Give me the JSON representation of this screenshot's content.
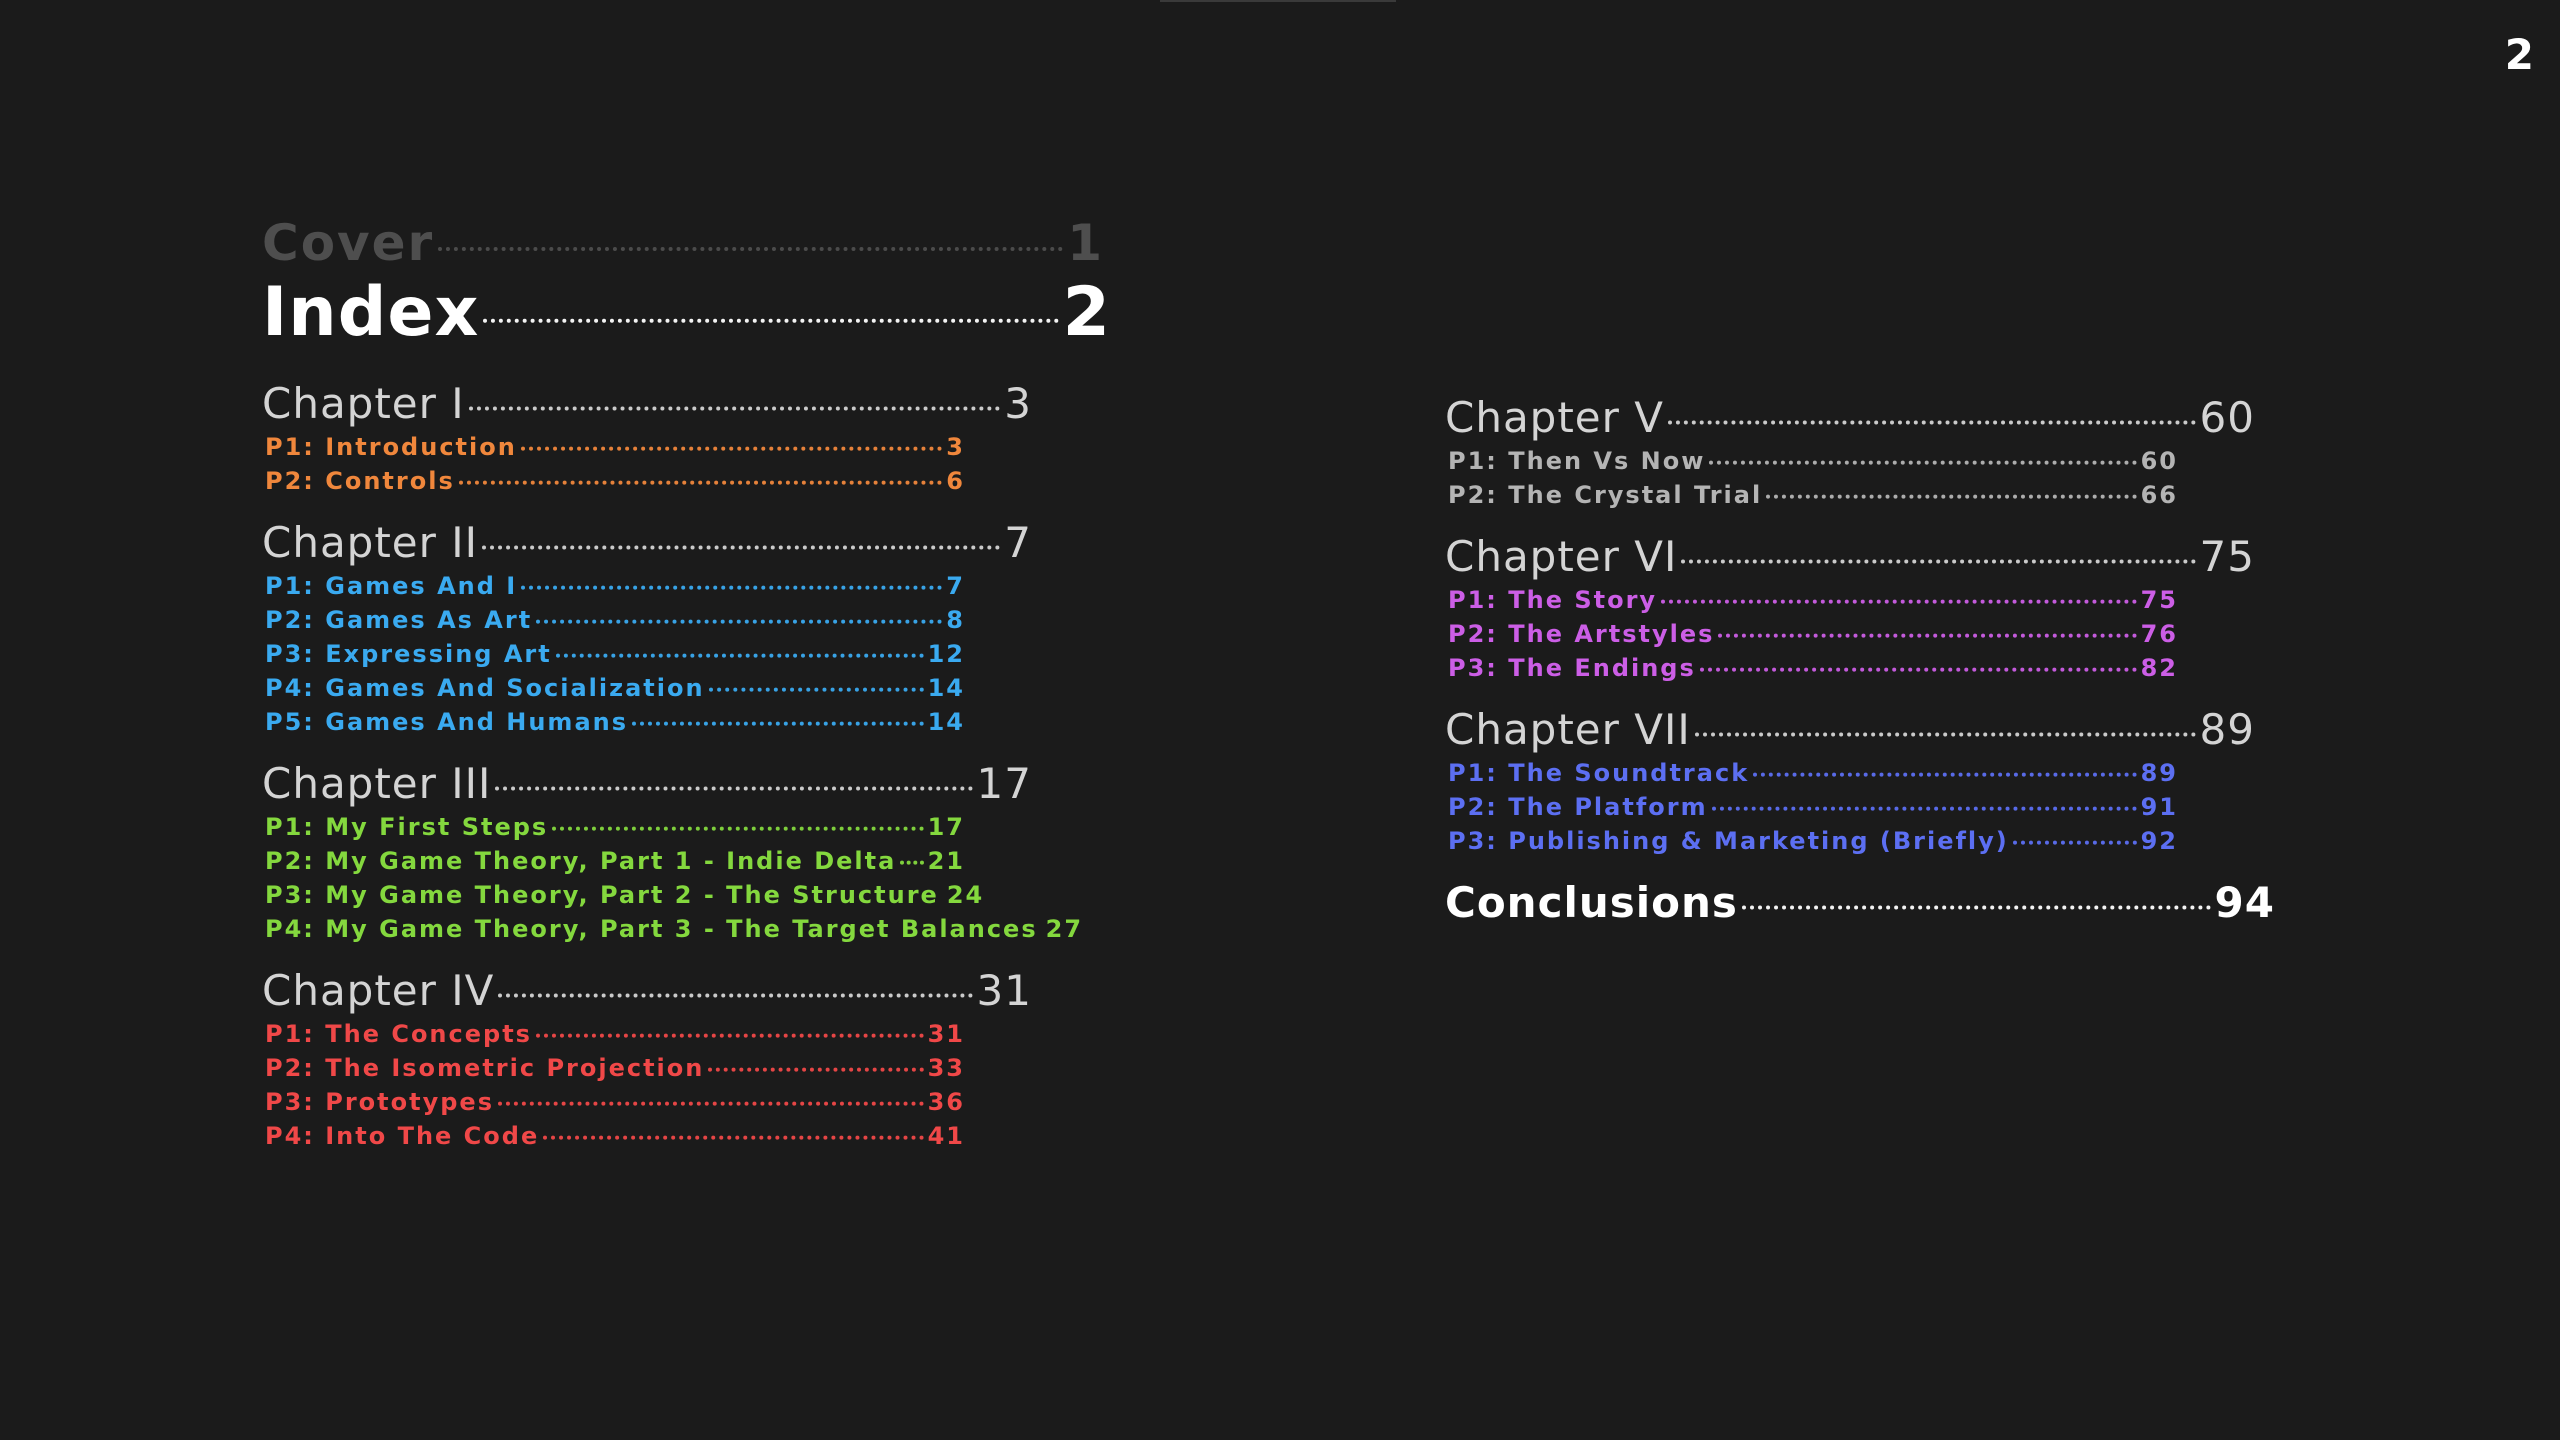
{
  "page_number": 2,
  "left_column": {
    "cover": {
      "title": "Cover",
      "page": 1
    },
    "index": {
      "title": "Index",
      "page": 2
    },
    "chapters": [
      {
        "title": "Chapter I",
        "page": 3,
        "color": "#f0873c",
        "parts": [
          {
            "title": "P1: Introduction",
            "page": 3
          },
          {
            "title": "P2: Controls",
            "page": 6
          }
        ]
      },
      {
        "title": "Chapter II",
        "page": 7,
        "color": "#3aaaf0",
        "parts": [
          {
            "title": "P1: Games And I",
            "page": 7
          },
          {
            "title": "P2: Games As Art",
            "page": 8
          },
          {
            "title": "P3: Expressing Art",
            "page": 12
          },
          {
            "title": "P4: Games And Socialization",
            "page": 14
          },
          {
            "title": "P5: Games And Humans",
            "page": 14
          }
        ]
      },
      {
        "title": "Chapter III",
        "page": 17,
        "color": "#84d83e",
        "parts": [
          {
            "title": "P1: My First Steps",
            "page": 17
          },
          {
            "title": "P2: My Game Theory, Part 1 - Indie Delta",
            "page": 21
          },
          {
            "title": "P3: My Game Theory, Part 2 - The Structure",
            "page": 24
          },
          {
            "title": "P4: My Game Theory, Part 3 - The Target Balances",
            "page": 27
          }
        ]
      },
      {
        "title": "Chapter IV",
        "page": 31,
        "color": "#f04848",
        "parts": [
          {
            "title": "P1: The Concepts",
            "page": 31
          },
          {
            "title": "P2: The Isometric Projection",
            "page": 33
          },
          {
            "title": "P3: Prototypes",
            "page": 36
          },
          {
            "title": "P4: Into The Code",
            "page": 41
          }
        ]
      }
    ]
  },
  "right_column": {
    "chapters": [
      {
        "title": "Chapter V",
        "page": 60,
        "color": "#b4b4b4",
        "parts": [
          {
            "title": "P1: Then Vs Now",
            "page": 60
          },
          {
            "title": "P2: The Crystal Trial",
            "page": 66
          }
        ]
      },
      {
        "title": "Chapter VI",
        "page": 75,
        "color": "#cc5ee6",
        "parts": [
          {
            "title": "P1: The Story",
            "page": 75
          },
          {
            "title": "P2: The Artstyles",
            "page": 76
          },
          {
            "title": "P3: The Endings",
            "page": 82
          }
        ]
      },
      {
        "title": "Chapter VII",
        "page": 89,
        "color": "#5c6ff2",
        "parts": [
          {
            "title": "P1: The Soundtrack",
            "page": 89
          },
          {
            "title": "P2: The Platform",
            "page": 91
          },
          {
            "title": "P3: Publishing & Marketing (Briefly)",
            "page": 92
          }
        ]
      }
    ],
    "conclusions": {
      "title": "Conclusions",
      "page": 94
    }
  }
}
